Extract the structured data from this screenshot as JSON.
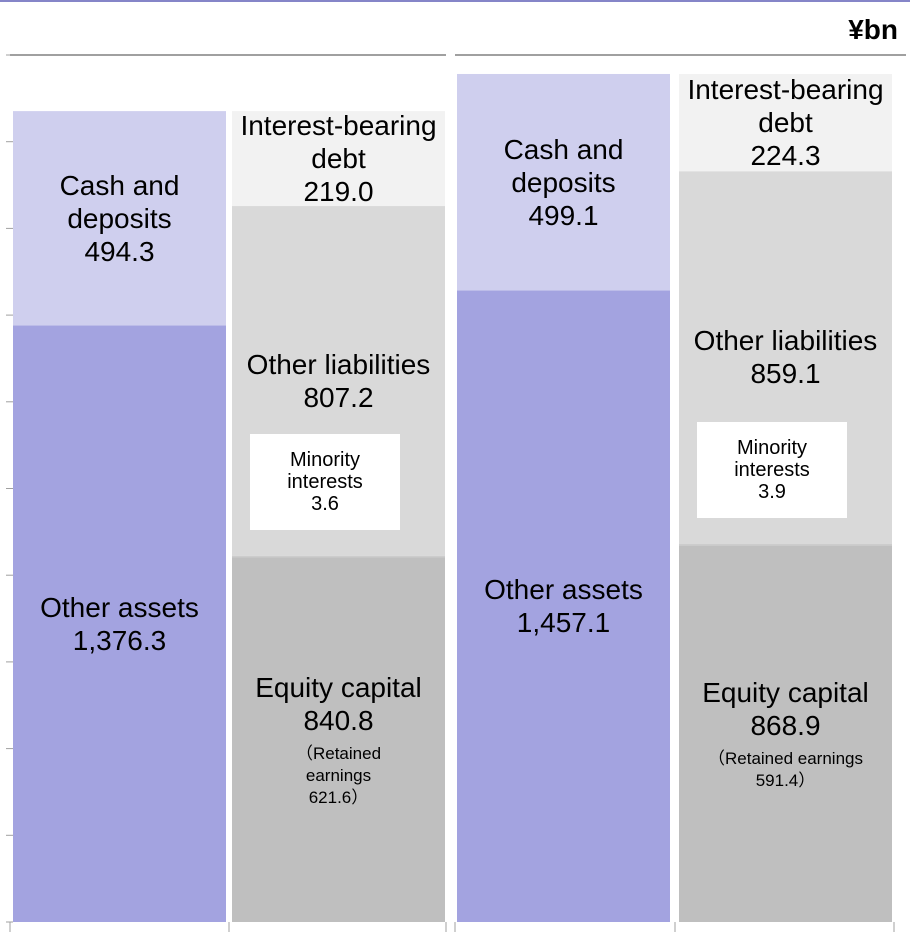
{
  "chart_data": {
    "type": "stacked-bar",
    "unit": "¥bn",
    "ylim": [
      0,
      2000
    ],
    "yticks": [
      0,
      200,
      400,
      600,
      800,
      1000,
      1200,
      1400,
      1600,
      1800,
      2000
    ],
    "columns": [
      {
        "segments": [
          {
            "name": "Other assets",
            "value": 1376.3,
            "value_label": "1,376.3",
            "color": "#a3a3e0"
          },
          {
            "name": "Cash and deposits",
            "value": 494.3,
            "color": "#cfcfee"
          }
        ]
      },
      {
        "segments": [
          {
            "name": "Equity capital",
            "value": 840.8,
            "color": "#bfbfbf",
            "note": "（Retained earnings 621.6）"
          },
          {
            "name": "Minority interests",
            "value": 3.6,
            "color": "#cccccc",
            "callout": true
          },
          {
            "name": "Other liabilities",
            "value": 807.2,
            "color": "#d9d9d9"
          },
          {
            "name": "Interest-bearing debt",
            "value": 219.0,
            "value_label": "219.0",
            "color": "#f2f2f2"
          }
        ]
      },
      {
        "segments": [
          {
            "name": "Other assets",
            "value": 1457.1,
            "value_label": "1,457.1",
            "color": "#a3a3e0"
          },
          {
            "name": "Cash and deposits",
            "value": 499.1,
            "color": "#cfcfee"
          }
        ]
      },
      {
        "segments": [
          {
            "name": "Equity capital",
            "value": 868.9,
            "color": "#bfbfbf",
            "note": "（Retained earnings 591.4）"
          },
          {
            "name": "Minority interests",
            "value": 3.9,
            "color": "#cccccc",
            "callout": true
          },
          {
            "name": "Other liabilities",
            "value": 859.1,
            "color": "#d9d9d9"
          },
          {
            "name": "Interest-bearing debt",
            "value": 224.3,
            "color": "#f2f2f2"
          }
        ]
      }
    ]
  }
}
